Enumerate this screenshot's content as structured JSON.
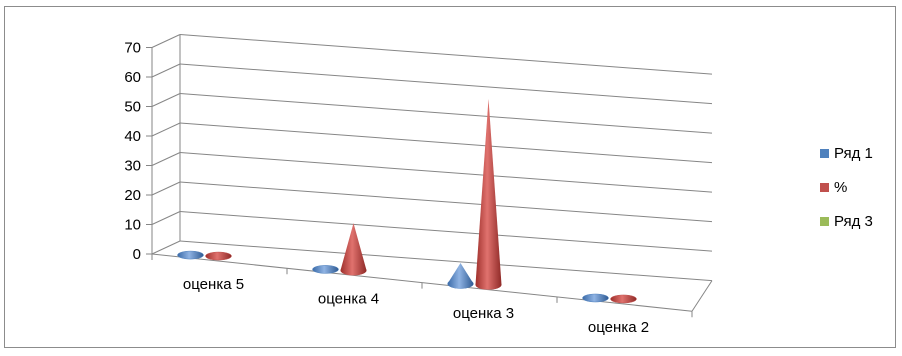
{
  "chart_data": {
    "type": "bar",
    "subtype": "3d-cone",
    "categories": [
      "оценка 5",
      "оценка 4",
      "оценка 3",
      "оценка 2"
    ],
    "series": [
      {
        "name": "Ряд 1",
        "color": "#4f81bd",
        "values": [
          0,
          0,
          7,
          0
        ]
      },
      {
        "name": "%",
        "color": "#c0504d",
        "values": [
          0,
          16,
          63,
          0
        ]
      },
      {
        "name": "Ряд 3",
        "color": "#9bbb59",
        "values": [
          0,
          0,
          0,
          0
        ]
      }
    ],
    "yticks": [
      "0",
      "10",
      "20",
      "30",
      "40",
      "50",
      "60",
      "70"
    ],
    "ylim": [
      0,
      70
    ],
    "grid": true,
    "legend_position": "right"
  }
}
